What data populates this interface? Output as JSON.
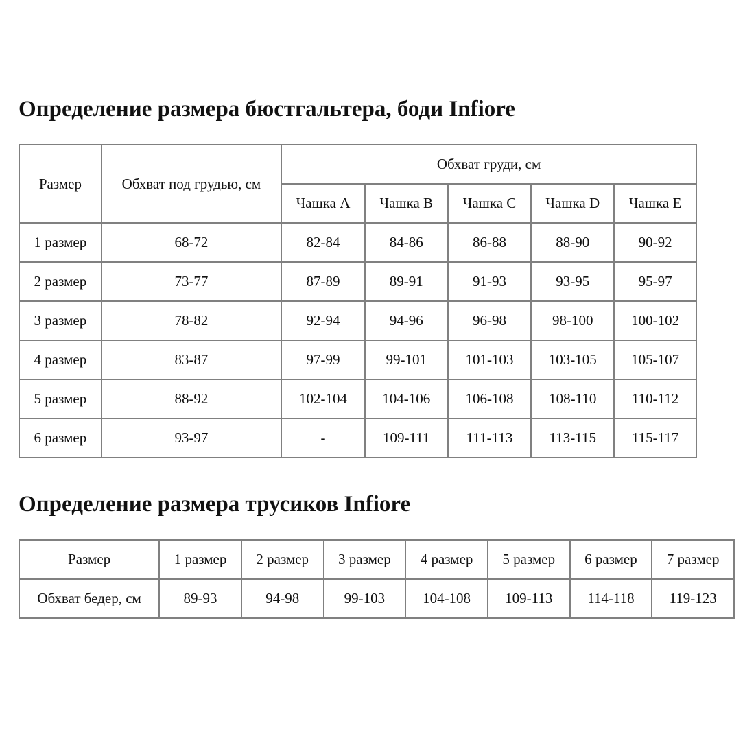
{
  "bra": {
    "title": "Определение размера бюстгальтера, боди Infiore",
    "header": {
      "size": "Размер",
      "underbust": "Обхват под грудью, см",
      "bust": "Обхват груди, см",
      "cups": [
        "Чашка A",
        "Чашка B",
        "Чашка C",
        "Чашка D",
        "Чашка E"
      ]
    },
    "rows": [
      [
        "1 размер",
        "68-72",
        "82-84",
        "84-86",
        "86-88",
        "88-90",
        "90-92"
      ],
      [
        "2 размер",
        "73-77",
        "87-89",
        "89-91",
        "91-93",
        "93-95",
        "95-97"
      ],
      [
        "3 размер",
        "78-82",
        "92-94",
        "94-96",
        "96-98",
        "98-100",
        "100-102"
      ],
      [
        "4 размер",
        "83-87",
        "97-99",
        "99-101",
        "101-103",
        "103-105",
        "105-107"
      ],
      [
        "5 размер",
        "88-92",
        "102-104",
        "104-106",
        "106-108",
        "108-110",
        "110-112"
      ],
      [
        "6 размер",
        "93-97",
        "-",
        "109-111",
        "111-113",
        "113-115",
        "115-117"
      ]
    ]
  },
  "panties": {
    "title": "Определение размера трусиков Infiore",
    "header": [
      "Размер",
      "1 размер",
      "2 размер",
      "3 размер",
      "4 размер",
      "5 размер",
      "6 размер",
      "7 размер"
    ],
    "row": [
      "Обхват бедер, см",
      "89-93",
      "94-98",
      "99-103",
      "104-108",
      "109-113",
      "114-118",
      "119-123"
    ]
  }
}
